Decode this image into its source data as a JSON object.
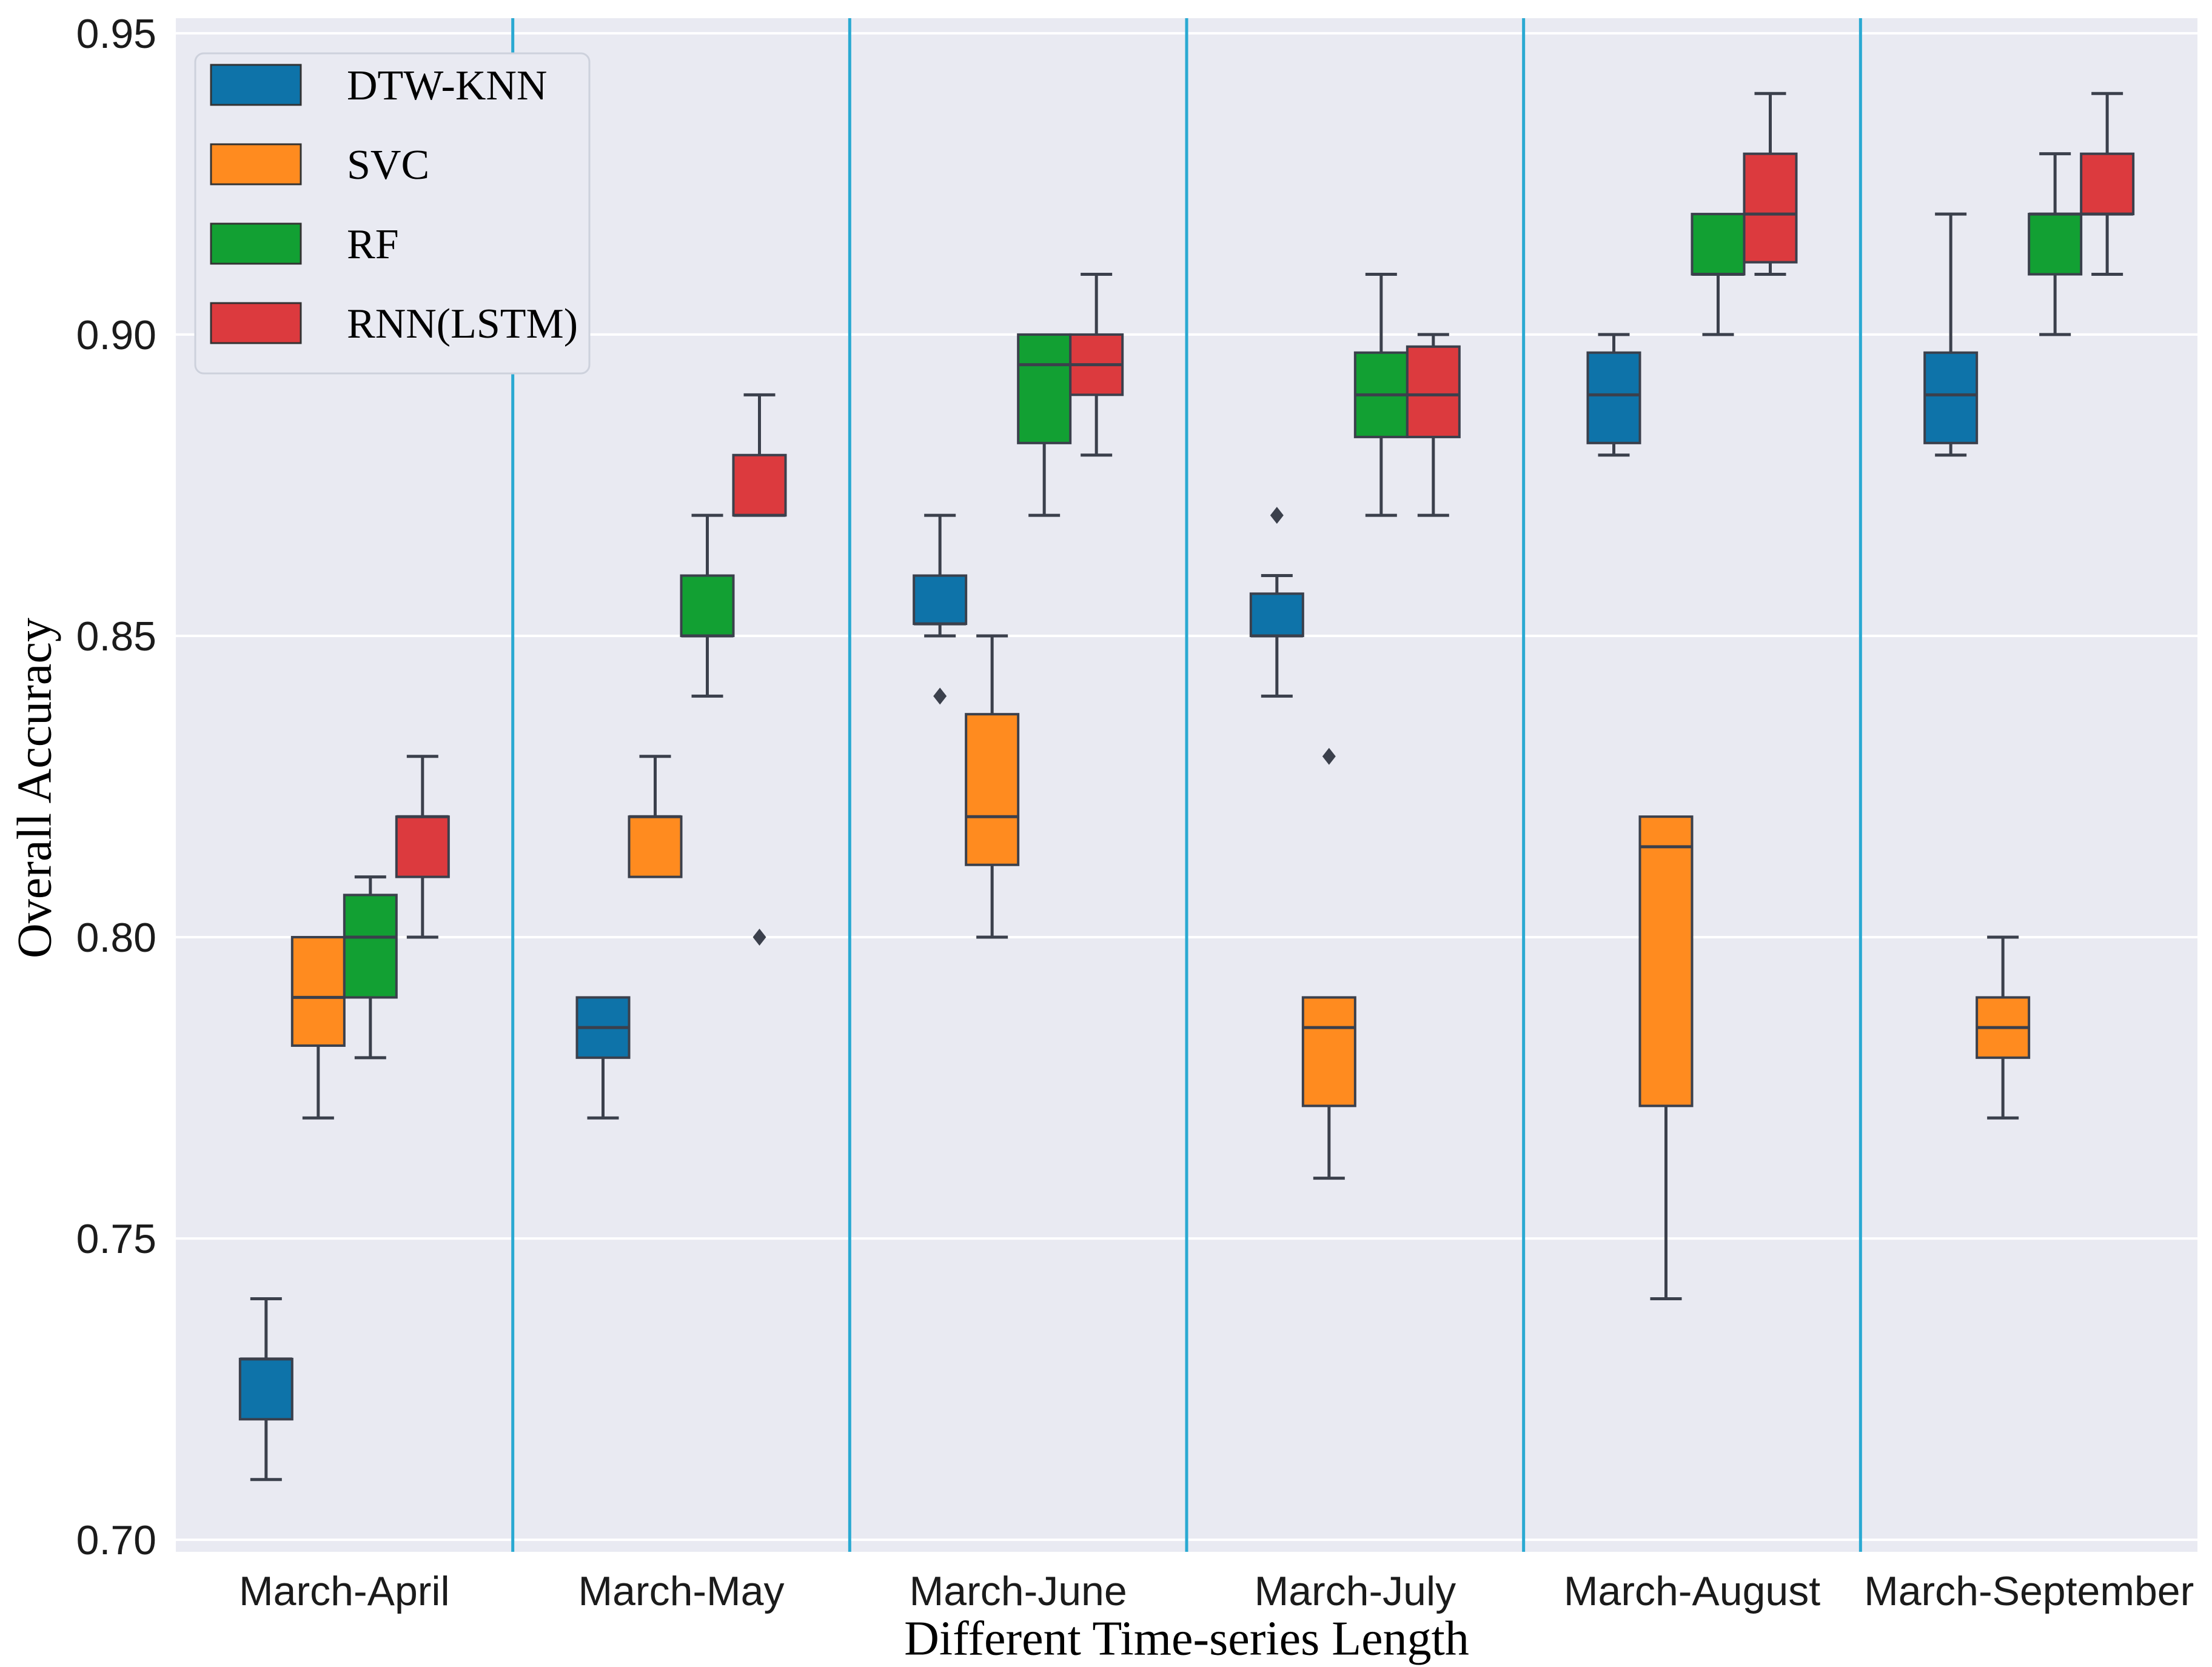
{
  "figure": {
    "xlabel": "Different Time-series Length",
    "ylabel": "Overall Accuracy"
  },
  "chart_data": {
    "type": "boxplot",
    "title": "",
    "xlabel": "Different Time-series Length",
    "ylabel": "Overall Accuracy",
    "categories": [
      "March-April",
      "March-May",
      "March-June",
      "March-July",
      "March-August",
      "March-September"
    ],
    "ylim": [
      0.698,
      0.9525
    ],
    "yticks": [
      "0.95",
      "0.90",
      "0.85",
      "0.80",
      "0.75",
      "0.70"
    ],
    "grid": "horizontal-white-on-lavender",
    "legend_position": "upper-left",
    "category_separator_color": "#2aa9d2",
    "plot_bg_color": "#e9eaf2",
    "box_edge_color": "#3b404c",
    "series": [
      {
        "name": "DTW-KNN",
        "color": "#0e73a9",
        "boxes": [
          {
            "whislo": 0.71,
            "q1": 0.72,
            "med": 0.73,
            "q3": 0.73,
            "whishi": 0.74,
            "outliers": []
          },
          {
            "whislo": 0.77,
            "q1": 0.78,
            "med": 0.785,
            "q3": 0.79,
            "whishi": 0.79,
            "outliers": []
          },
          {
            "whislo": 0.85,
            "q1": 0.852,
            "med": 0.852,
            "q3": 0.86,
            "whishi": 0.87,
            "outliers": [
              0.84
            ]
          },
          {
            "whislo": 0.84,
            "q1": 0.85,
            "med": 0.85,
            "q3": 0.857,
            "whishi": 0.86,
            "outliers": [
              0.87
            ]
          },
          {
            "whislo": 0.88,
            "q1": 0.882,
            "med": 0.89,
            "q3": 0.897,
            "whishi": 0.9,
            "outliers": []
          },
          {
            "whislo": 0.88,
            "q1": 0.882,
            "med": 0.89,
            "q3": 0.897,
            "whishi": 0.92,
            "outliers": []
          }
        ]
      },
      {
        "name": "SVC",
        "color": "#ff8b1f",
        "boxes": [
          {
            "whislo": 0.77,
            "q1": 0.782,
            "med": 0.79,
            "q3": 0.8,
            "whishi": 0.8,
            "outliers": []
          },
          {
            "whislo": 0.81,
            "q1": 0.81,
            "med": 0.82,
            "q3": 0.82,
            "whishi": 0.83,
            "outliers": []
          },
          {
            "whislo": 0.8,
            "q1": 0.812,
            "med": 0.82,
            "q3": 0.837,
            "whishi": 0.85,
            "outliers": []
          },
          {
            "whislo": 0.76,
            "q1": 0.772,
            "med": 0.785,
            "q3": 0.79,
            "whishi": 0.79,
            "outliers": [
              0.83
            ]
          },
          {
            "whislo": 0.74,
            "q1": 0.772,
            "med": 0.815,
            "q3": 0.82,
            "whishi": 0.82,
            "outliers": []
          },
          {
            "whislo": 0.77,
            "q1": 0.78,
            "med": 0.785,
            "q3": 0.79,
            "whishi": 0.8,
            "outliers": []
          }
        ]
      },
      {
        "name": "RF",
        "color": "#12a033",
        "boxes": [
          {
            "whislo": 0.78,
            "q1": 0.79,
            "med": 0.8,
            "q3": 0.807,
            "whishi": 0.81,
            "outliers": []
          },
          {
            "whislo": 0.84,
            "q1": 0.85,
            "med": 0.85,
            "q3": 0.86,
            "whishi": 0.87,
            "outliers": []
          },
          {
            "whislo": 0.87,
            "q1": 0.882,
            "med": 0.895,
            "q3": 0.9,
            "whishi": 0.9,
            "outliers": []
          },
          {
            "whislo": 0.87,
            "q1": 0.883,
            "med": 0.89,
            "q3": 0.897,
            "whishi": 0.91,
            "outliers": []
          },
          {
            "whislo": 0.9,
            "q1": 0.91,
            "med": 0.91,
            "q3": 0.92,
            "whishi": 0.92,
            "outliers": []
          },
          {
            "whislo": 0.9,
            "q1": 0.91,
            "med": 0.92,
            "q3": 0.92,
            "whishi": 0.93,
            "outliers": []
          }
        ]
      },
      {
        "name": "RNN(LSTM)",
        "color": "#dc3a3e",
        "boxes": [
          {
            "whislo": 0.8,
            "q1": 0.81,
            "med": 0.82,
            "q3": 0.82,
            "whishi": 0.83,
            "outliers": []
          },
          {
            "whislo": 0.87,
            "q1": 0.87,
            "med": 0.87,
            "q3": 0.88,
            "whishi": 0.89,
            "outliers": [
              0.8
            ]
          },
          {
            "whislo": 0.88,
            "q1": 0.89,
            "med": 0.895,
            "q3": 0.9,
            "whishi": 0.91,
            "outliers": []
          },
          {
            "whislo": 0.87,
            "q1": 0.883,
            "med": 0.89,
            "q3": 0.898,
            "whishi": 0.9,
            "outliers": []
          },
          {
            "whislo": 0.91,
            "q1": 0.912,
            "med": 0.92,
            "q3": 0.93,
            "whishi": 0.94,
            "outliers": []
          },
          {
            "whislo": 0.91,
            "q1": 0.92,
            "med": 0.92,
            "q3": 0.93,
            "whishi": 0.94,
            "outliers": []
          }
        ]
      }
    ]
  }
}
